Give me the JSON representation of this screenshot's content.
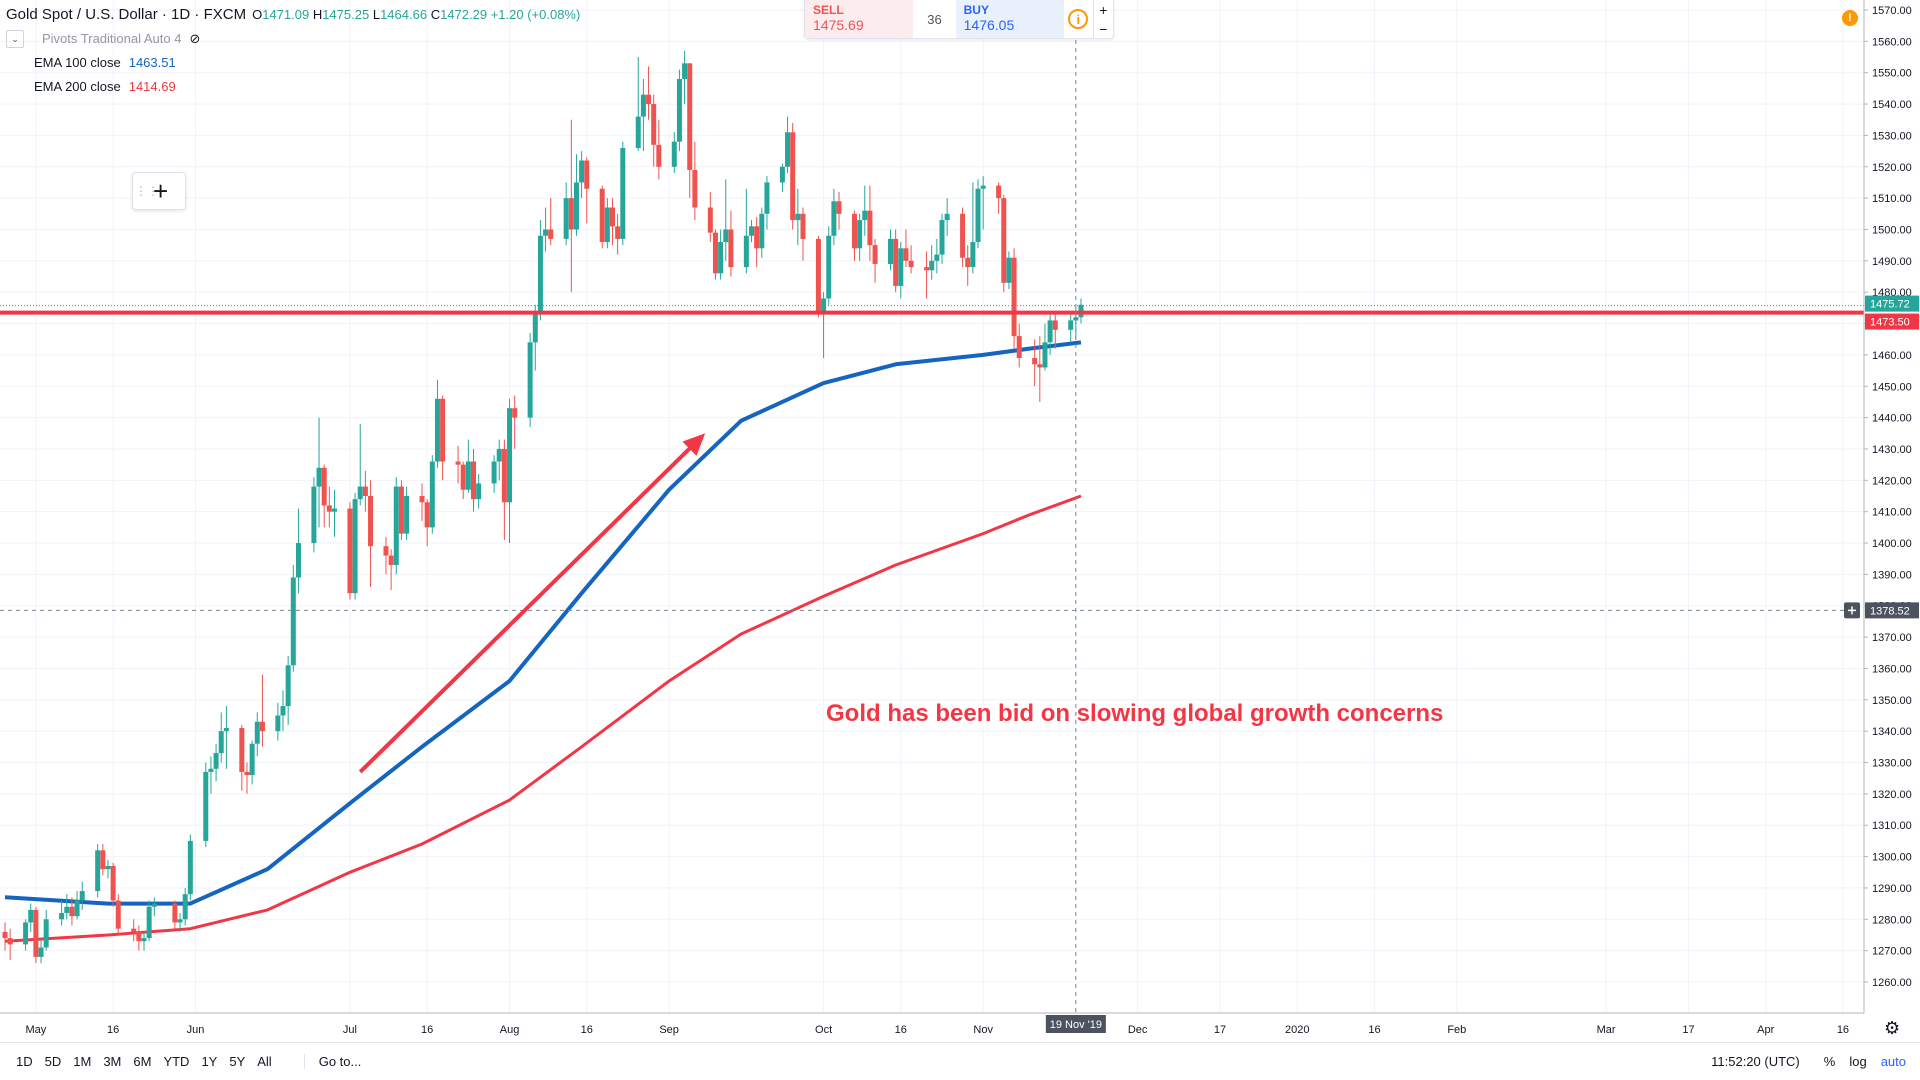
{
  "header": {
    "title": "Gold Spot / U.S. Dollar · 1D · FXCM",
    "ohlc": {
      "o_label": "O",
      "o": "1471.09",
      "h_label": "H",
      "h": "1475.25",
      "l_label": "L",
      "l": "1464.66",
      "c_label": "C",
      "c": "1472.29",
      "change": "+1.20 (+0.08%)"
    },
    "pivots_label": "Pivots Traditional Auto 4",
    "ema100_label": "EMA 100 close",
    "ema100_value": "1463.51",
    "ema200_label": "EMA 200 close",
    "ema200_value": "1414.69"
  },
  "trade": {
    "sell_label": "SELL",
    "sell_price": "1475.69",
    "spread": "36",
    "buy_label": "BUY",
    "buy_price": "1476.05",
    "plus": "+",
    "minus": "−"
  },
  "annotation": "Gold has been bid on slowing global growth concerns",
  "axis": {
    "price_labels": [
      "1570.00",
      "1560.00",
      "1550.00",
      "1540.00",
      "1530.00",
      "1520.00",
      "1510.00",
      "1500.00",
      "1490.00",
      "1480.00",
      "1470.00",
      "1460.00",
      "1450.00",
      "1440.00",
      "1430.00",
      "1420.00",
      "1410.00",
      "1400.00",
      "1390.00",
      "1380.00",
      "1370.00",
      "1360.00",
      "1350.00",
      "1340.00",
      "1330.00",
      "1320.00",
      "1310.00",
      "1300.00",
      "1290.00",
      "1280.00",
      "1270.00",
      "1260.00"
    ],
    "time_labels": [
      "May",
      "16",
      "Jun",
      "Jul",
      "16",
      "Aug",
      "16",
      "Sep",
      "Oct",
      "16",
      "Nov",
      "Dec",
      "17",
      "2020",
      "16",
      "Feb",
      "Mar",
      "17",
      "Apr",
      "16"
    ],
    "crosshair_time": "19 Nov '19",
    "crosshair_price": "1378.52",
    "last_price": "1475.72",
    "level_price": "1473.50"
  },
  "bottom": {
    "ranges": [
      "1D",
      "5D",
      "1M",
      "3M",
      "6M",
      "YTD",
      "1Y",
      "5Y",
      "All"
    ],
    "goto": "Go to...",
    "clock": "11:52:20 (UTC)",
    "percent": "%",
    "log": "log",
    "auto": "auto"
  },
  "colors": {
    "up": "#26a69a",
    "down": "#ef5350",
    "ema100": "#1565c0",
    "ema200": "#f23645",
    "level": "#f23645"
  },
  "chart_data": {
    "type": "candlestick",
    "title": "Gold Spot / U.S. Dollar · 1D · FXCM",
    "ylim": [
      1250,
      1575
    ],
    "x_range": [
      "2019-04-25",
      "2020-04-20"
    ],
    "horizontal_line": 1473.5,
    "trend_arrow": {
      "from": [
        "2019-07-03",
        1327
      ],
      "to": [
        "2019-09-08",
        1435
      ]
    },
    "series": [
      {
        "name": "EMA 100 close",
        "x": [
          "2019-04-25",
          "2019-05-15",
          "2019-05-31",
          "2019-06-15",
          "2019-07-01",
          "2019-07-15",
          "2019-08-01",
          "2019-08-15",
          "2019-09-01",
          "2019-09-15",
          "2019-10-01",
          "2019-10-15",
          "2019-11-01",
          "2019-11-10",
          "2019-11-20"
        ],
        "values": [
          1287,
          1285,
          1285,
          1296,
          1317,
          1335,
          1356,
          1384,
          1417,
          1439,
          1451,
          1457,
          1460,
          1462,
          1464
        ]
      },
      {
        "name": "EMA 200 close",
        "x": [
          "2019-04-25",
          "2019-05-15",
          "2019-05-31",
          "2019-06-15",
          "2019-07-01",
          "2019-07-15",
          "2019-08-01",
          "2019-08-15",
          "2019-09-01",
          "2019-09-15",
          "2019-10-01",
          "2019-10-15",
          "2019-11-01",
          "2019-11-10",
          "2019-11-20"
        ],
        "values": [
          1273,
          1275,
          1277,
          1283,
          1295,
          1304,
          1318,
          1335,
          1356,
          1371,
          1383,
          1393,
          1403,
          1409,
          1415
        ]
      }
    ],
    "candles": [
      [
        "2019-04-25",
        1276,
        1279,
        1270,
        1274
      ],
      [
        "2019-04-26",
        1274,
        1277,
        1267,
        1272
      ],
      [
        "2019-04-29",
        1272,
        1280,
        1270,
        1279
      ],
      [
        "2019-04-30",
        1279,
        1285,
        1276,
        1283
      ],
      [
        "2019-05-01",
        1283,
        1284,
        1266,
        1268
      ],
      [
        "2019-05-02",
        1268,
        1274,
        1266,
        1271
      ],
      [
        "2019-05-03",
        1271,
        1283,
        1270,
        1280
      ],
      [
        "2019-05-06",
        1280,
        1286,
        1278,
        1282
      ],
      [
        "2019-05-07",
        1282,
        1288,
        1280,
        1284
      ],
      [
        "2019-05-08",
        1284,
        1287,
        1278,
        1281
      ],
      [
        "2019-05-09",
        1281,
        1289,
        1280,
        1286
      ],
      [
        "2019-05-10",
        1286,
        1292,
        1283,
        1289
      ],
      [
        "2019-05-13",
        1289,
        1304,
        1287,
        1302
      ],
      [
        "2019-05-14",
        1302,
        1304,
        1294,
        1296
      ],
      [
        "2019-05-15",
        1296,
        1299,
        1293,
        1297
      ],
      [
        "2019-05-16",
        1297,
        1298,
        1284,
        1286
      ],
      [
        "2019-05-17",
        1286,
        1288,
        1275,
        1277
      ],
      [
        "2019-05-20",
        1277,
        1280,
        1273,
        1276
      ],
      [
        "2019-05-21",
        1276,
        1278,
        1270,
        1273
      ],
      [
        "2019-05-22",
        1273,
        1276,
        1270,
        1274
      ],
      [
        "2019-05-23",
        1274,
        1286,
        1273,
        1284
      ],
      [
        "2019-05-24",
        1284,
        1287,
        1281,
        1285
      ],
      [
        "2019-05-28",
        1285,
        1286,
        1277,
        1279
      ],
      [
        "2019-05-29",
        1279,
        1282,
        1276,
        1280
      ],
      [
        "2019-05-30",
        1280,
        1290,
        1278,
        1288
      ],
      [
        "2019-05-31",
        1288,
        1307,
        1286,
        1305
      ],
      [
        "2019-06-03",
        1305,
        1330,
        1303,
        1327
      ],
      [
        "2019-06-04",
        1327,
        1332,
        1320,
        1328
      ],
      [
        "2019-06-05",
        1328,
        1336,
        1324,
        1333
      ],
      [
        "2019-06-06",
        1333,
        1346,
        1330,
        1340
      ],
      [
        "2019-06-07",
        1340,
        1348,
        1328,
        1341
      ],
      [
        "2019-06-10",
        1341,
        1342,
        1321,
        1327
      ],
      [
        "2019-06-11",
        1327,
        1330,
        1320,
        1326
      ],
      [
        "2019-06-12",
        1326,
        1337,
        1323,
        1336
      ],
      [
        "2019-06-13",
        1336,
        1346,
        1332,
        1343
      ],
      [
        "2019-06-14",
        1343,
        1358,
        1335,
        1340
      ],
      [
        "2019-06-17",
        1340,
        1349,
        1337,
        1345
      ],
      [
        "2019-06-18",
        1345,
        1353,
        1340,
        1348
      ],
      [
        "2019-06-19",
        1348,
        1364,
        1342,
        1361
      ],
      [
        "2019-06-20",
        1361,
        1393,
        1359,
        1389
      ],
      [
        "2019-06-21",
        1389,
        1411,
        1384,
        1400
      ],
      [
        "2019-06-24",
        1400,
        1421,
        1397,
        1418
      ],
      [
        "2019-06-25",
        1418,
        1440,
        1405,
        1424
      ],
      [
        "2019-06-26",
        1424,
        1425,
        1405,
        1412
      ],
      [
        "2019-06-27",
        1412,
        1418,
        1405,
        1410
      ],
      [
        "2019-06-28",
        1410,
        1417,
        1402,
        1411
      ],
      [
        "2019-07-01",
        1411,
        1413,
        1382,
        1384
      ],
      [
        "2019-07-02",
        1384,
        1416,
        1382,
        1414
      ],
      [
        "2019-07-03",
        1414,
        1438,
        1412,
        1418
      ],
      [
        "2019-07-04",
        1418,
        1423,
        1410,
        1415
      ],
      [
        "2019-07-05",
        1415,
        1420,
        1386,
        1399
      ],
      [
        "2019-07-08",
        1399,
        1402,
        1390,
        1396
      ],
      [
        "2019-07-09",
        1396,
        1398,
        1385,
        1393
      ],
      [
        "2019-07-10",
        1393,
        1421,
        1390,
        1418
      ],
      [
        "2019-07-11",
        1418,
        1420,
        1401,
        1403
      ],
      [
        "2019-07-12",
        1403,
        1418,
        1401,
        1415
      ],
      [
        "2019-07-15",
        1415,
        1419,
        1407,
        1413
      ],
      [
        "2019-07-16",
        1413,
        1414,
        1399,
        1405
      ],
      [
        "2019-07-17",
        1405,
        1428,
        1403,
        1426
      ],
      [
        "2019-07-18",
        1426,
        1452,
        1424,
        1446
      ],
      [
        "2019-07-19",
        1446,
        1447,
        1420,
        1426
      ],
      [
        "2019-07-22",
        1426,
        1431,
        1419,
        1425
      ],
      [
        "2019-07-23",
        1425,
        1426,
        1414,
        1417
      ],
      [
        "2019-07-24",
        1417,
        1433,
        1416,
        1426
      ],
      [
        "2019-07-25",
        1426,
        1430,
        1410,
        1414
      ],
      [
        "2019-07-26",
        1414,
        1422,
        1411,
        1419
      ],
      [
        "2019-07-29",
        1419,
        1428,
        1416,
        1426
      ],
      [
        "2019-07-30",
        1426,
        1433,
        1420,
        1430
      ],
      [
        "2019-07-31",
        1430,
        1433,
        1401,
        1413
      ],
      [
        "2019-08-01",
        1413,
        1446,
        1400,
        1443
      ],
      [
        "2019-08-02",
        1443,
        1447,
        1430,
        1440
      ],
      [
        "2019-08-05",
        1440,
        1467,
        1437,
        1464
      ],
      [
        "2019-08-06",
        1464,
        1476,
        1455,
        1474
      ],
      [
        "2019-08-07",
        1474,
        1503,
        1471,
        1498
      ],
      [
        "2019-08-08",
        1498,
        1507,
        1493,
        1500
      ],
      [
        "2019-08-09",
        1500,
        1510,
        1495,
        1497
      ],
      [
        "2019-08-12",
        1497,
        1515,
        1495,
        1510
      ],
      [
        "2019-08-13",
        1510,
        1535,
        1480,
        1500
      ],
      [
        "2019-08-14",
        1500,
        1524,
        1498,
        1515
      ],
      [
        "2019-08-15",
        1515,
        1525,
        1510,
        1522
      ],
      [
        "2019-08-16",
        1522,
        1523,
        1502,
        1513
      ],
      [
        "2019-08-19",
        1513,
        1514,
        1494,
        1496
      ],
      [
        "2019-08-20",
        1496,
        1510,
        1494,
        1507
      ],
      [
        "2019-08-21",
        1507,
        1510,
        1495,
        1501
      ],
      [
        "2019-08-22",
        1501,
        1505,
        1492,
        1497
      ],
      [
        "2019-08-23",
        1497,
        1528,
        1495,
        1526
      ],
      [
        "2019-08-26",
        1526,
        1555,
        1525,
        1536
      ],
      [
        "2019-08-27",
        1536,
        1548,
        1525,
        1543
      ],
      [
        "2019-08-28",
        1543,
        1552,
        1535,
        1540
      ],
      [
        "2019-08-29",
        1540,
        1543,
        1520,
        1527
      ],
      [
        "2019-08-30",
        1527,
        1535,
        1516,
        1520
      ],
      [
        "2019-09-02",
        1520,
        1531,
        1518,
        1528
      ],
      [
        "2019-09-03",
        1528,
        1551,
        1525,
        1548
      ],
      [
        "2019-09-04",
        1548,
        1557,
        1540,
        1553
      ],
      [
        "2019-09-05",
        1553,
        1553,
        1510,
        1519
      ],
      [
        "2019-09-06",
        1519,
        1528,
        1503,
        1507
      ],
      [
        "2019-09-09",
        1507,
        1512,
        1496,
        1499
      ],
      [
        "2019-09-10",
        1499,
        1500,
        1484,
        1486
      ],
      [
        "2019-09-11",
        1486,
        1500,
        1484,
        1496
      ],
      [
        "2019-09-12",
        1496,
        1516,
        1490,
        1500
      ],
      [
        "2019-09-13",
        1500,
        1506,
        1485,
        1488
      ],
      [
        "2019-09-16",
        1488,
        1513,
        1486,
        1498
      ],
      [
        "2019-09-17",
        1498,
        1503,
        1496,
        1501
      ],
      [
        "2019-09-18",
        1501,
        1504,
        1488,
        1494
      ],
      [
        "2019-09-19",
        1494,
        1507,
        1491,
        1505
      ],
      [
        "2019-09-20",
        1505,
        1517,
        1500,
        1515
      ],
      [
        "2019-09-23",
        1515,
        1521,
        1512,
        1520
      ],
      [
        "2019-09-24",
        1520,
        1536,
        1518,
        1531
      ],
      [
        "2019-09-25",
        1531,
        1534,
        1500,
        1503
      ],
      [
        "2019-09-26",
        1503,
        1513,
        1495,
        1505
      ],
      [
        "2019-09-27",
        1505,
        1507,
        1490,
        1497
      ],
      [
        "2019-09-30",
        1497,
        1498,
        1472,
        1474
      ],
      [
        "2019-10-01",
        1474,
        1480,
        1459,
        1478
      ],
      [
        "2019-10-02",
        1478,
        1501,
        1476,
        1498
      ],
      [
        "2019-10-03",
        1498,
        1513,
        1495,
        1509
      ],
      [
        "2019-10-04",
        1509,
        1512,
        1500,
        1505
      ],
      [
        "2019-10-07",
        1505,
        1506,
        1490,
        1494
      ],
      [
        "2019-10-08",
        1494,
        1505,
        1490,
        1503
      ],
      [
        "2019-10-09",
        1503,
        1514,
        1498,
        1506
      ],
      [
        "2019-10-10",
        1506,
        1514,
        1490,
        1495
      ],
      [
        "2019-10-11",
        1495,
        1497,
        1483,
        1489
      ],
      [
        "2019-10-14",
        1489,
        1500,
        1487,
        1497
      ],
      [
        "2019-10-15",
        1497,
        1500,
        1480,
        1482
      ],
      [
        "2019-10-16",
        1482,
        1496,
        1478,
        1494
      ],
      [
        "2019-10-17",
        1494,
        1500,
        1488,
        1490
      ],
      [
        "2019-10-18",
        1490,
        1495,
        1486,
        1488
      ],
      [
        "2019-10-21",
        1488,
        1493,
        1478,
        1487
      ],
      [
        "2019-10-22",
        1487,
        1495,
        1484,
        1490
      ],
      [
        "2019-10-23",
        1490,
        1497,
        1486,
        1492
      ],
      [
        "2019-10-24",
        1492,
        1505,
        1489,
        1503
      ],
      [
        "2019-10-25",
        1503,
        1510,
        1498,
        1505
      ],
      [
        "2019-10-28",
        1505,
        1507,
        1488,
        1491
      ],
      [
        "2019-10-29",
        1491,
        1495,
        1482,
        1488
      ],
      [
        "2019-10-30",
        1488,
        1515,
        1486,
        1496
      ],
      [
        "2019-10-31",
        1496,
        1516,
        1494,
        1513
      ],
      [
        "2019-11-01",
        1513,
        1517,
        1500,
        1514
      ],
      [
        "2019-11-04",
        1514,
        1515,
        1505,
        1510
      ],
      [
        "2019-11-05",
        1510,
        1511,
        1480,
        1483
      ],
      [
        "2019-11-06",
        1483,
        1493,
        1481,
        1491
      ],
      [
        "2019-11-07",
        1491,
        1494,
        1462,
        1466
      ],
      [
        "2019-11-08",
        1466,
        1470,
        1456,
        1459
      ],
      [
        "2019-11-11",
        1459,
        1465,
        1450,
        1457
      ],
      [
        "2019-11-12",
        1457,
        1466,
        1445,
        1456
      ],
      [
        "2019-11-13",
        1456,
        1470,
        1455,
        1464
      ],
      [
        "2019-11-14",
        1464,
        1474,
        1460,
        1471
      ],
      [
        "2019-11-15",
        1471,
        1473,
        1462,
        1468
      ],
      [
        "2019-11-18",
        1468,
        1474,
        1464,
        1471
      ],
      [
        "2019-11-19",
        1471,
        1475,
        1465,
        1472
      ],
      [
        "2019-11-20",
        1472,
        1478,
        1470,
        1476
      ]
    ]
  }
}
